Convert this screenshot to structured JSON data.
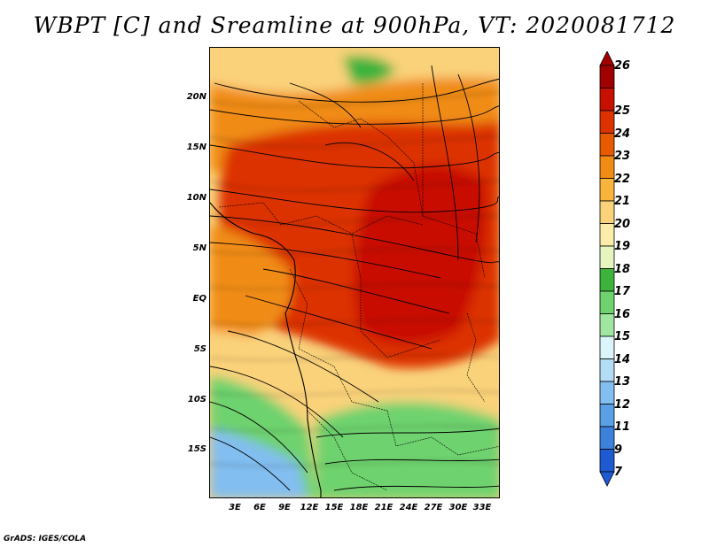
{
  "title": "WBPT [C] and Sreamline at 900hPa, VT: 2020081712",
  "credit": "GrADS: IGES/COLA",
  "map": {
    "lat_labels": [
      "20N",
      "15N",
      "10N",
      "5N",
      "EQ",
      "5S",
      "10S",
      "15S"
    ],
    "lon_labels": [
      "3E",
      "6E",
      "9E",
      "12E",
      "15E",
      "18E",
      "21E",
      "24E",
      "27E",
      "30E",
      "33E"
    ]
  },
  "colorbar": {
    "labels": [
      "26",
      "25",
      "24",
      "23",
      "22",
      "21",
      "20",
      "19",
      "18",
      "17",
      "16",
      "15",
      "14",
      "13",
      "12",
      "11",
      "9",
      "7"
    ],
    "colors": [
      "#a00000",
      "#c81000",
      "#dc3200",
      "#e85a00",
      "#f08c14",
      "#f8b43c",
      "#fad27a",
      "#fcecaa",
      "#e6f5be",
      "#3cb43c",
      "#6ed26e",
      "#a0e6a0",
      "#dcf5fa",
      "#b4dcf5",
      "#82bef0",
      "#5aa0e6",
      "#3c82dc",
      "#1e5ad2"
    ]
  }
}
